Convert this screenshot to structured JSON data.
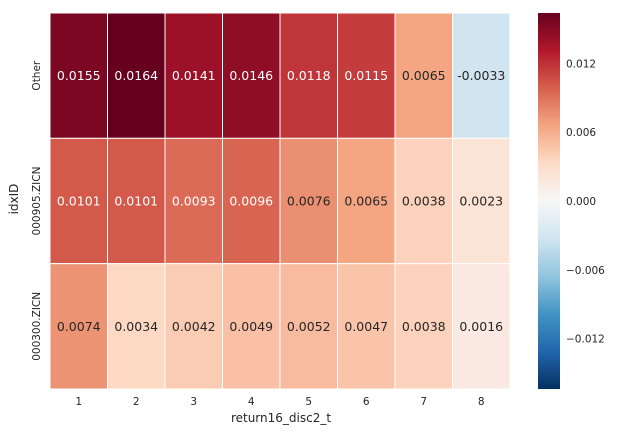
{
  "chart_data": {
    "type": "heatmap",
    "title": "",
    "xlabel": "return16_disc2_t",
    "ylabel": "idxID",
    "x_categories": [
      "1",
      "2",
      "3",
      "4",
      "5",
      "6",
      "7",
      "8"
    ],
    "y_categories": [
      "Other",
      "000905.ZICN",
      "000300.ZICN"
    ],
    "values": [
      [
        0.0155,
        0.0164,
        0.0141,
        0.0146,
        0.0118,
        0.0115,
        0.0065,
        -0.0033
      ],
      [
        0.0101,
        0.0101,
        0.0093,
        0.0096,
        0.0076,
        0.0065,
        0.0038,
        0.0023
      ],
      [
        0.0074,
        0.0034,
        0.0042,
        0.0049,
        0.0052,
        0.0047,
        0.0038,
        0.0016
      ]
    ],
    "labels": [
      [
        "0.0155",
        "0.0164",
        "0.0141",
        "0.0146",
        "0.0118",
        "0.0115",
        "0.0065",
        "-0.0033"
      ],
      [
        "0.0101",
        "0.0101",
        "0.0093",
        "0.0096",
        "0.0076",
        "0.0065",
        "0.0038",
        "0.0023"
      ],
      [
        "0.0074",
        "0.0034",
        "0.0042",
        "0.0049",
        "0.0052",
        "0.0047",
        "0.0038",
        "0.0016"
      ]
    ],
    "colormap": "RdBu_r",
    "vmin": -0.0164,
    "vmax": 0.0164,
    "colorbar_ticks": [
      0.012,
      0.006,
      0.0,
      -0.006,
      -0.012
    ],
    "colorbar_tick_labels": [
      "0.012",
      "0.006",
      "0.000",
      "−0.006",
      "−0.012"
    ],
    "colors": {
      "cell_border": "#ffffff",
      "text_dark": "#262626",
      "text_light": "#ffffff"
    }
  }
}
